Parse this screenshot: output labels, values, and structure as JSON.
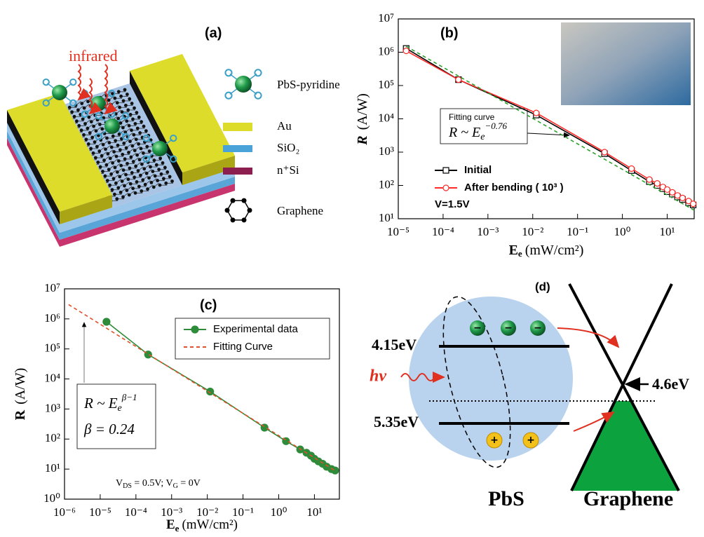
{
  "panel_a": {
    "label": "(a)",
    "infrared": "infrared",
    "legend": [
      "PbS-pyridine",
      "Au",
      "SiO₂",
      "n⁺Si",
      "Graphene"
    ]
  },
  "chart_data": [
    {
      "type": "line",
      "panel_label": "(b)",
      "y_label": {
        "symbol": "R",
        "unit": "(A/W)"
      },
      "x_label": {
        "symbol": "E",
        "subscript": "e",
        "unit": "(mW/cm²)"
      },
      "log_x": true,
      "log_y": true,
      "xlim": [
        1e-05,
        40
      ],
      "ylim": [
        10,
        10000000.0
      ],
      "xticks": [
        {
          "value": 1e-05,
          "label": "10⁻⁵"
        },
        {
          "value": 0.0001,
          "label": "10⁻⁴"
        },
        {
          "value": 0.001,
          "label": "10⁻³"
        },
        {
          "value": 0.01,
          "label": "10⁻²"
        },
        {
          "value": 0.1,
          "label": "10⁻¹"
        },
        {
          "value": 1,
          "label": "10⁰"
        },
        {
          "value": 10,
          "label": "10¹"
        }
      ],
      "yticks": [
        {
          "value": 10,
          "label": "10¹"
        },
        {
          "value": 100,
          "label": "10²"
        },
        {
          "value": 1000,
          "label": "10³"
        },
        {
          "value": 10000,
          "label": "10⁴"
        },
        {
          "value": 100000,
          "label": "10⁵"
        },
        {
          "value": 1000000,
          "label": "10⁶"
        },
        {
          "value": 10000000,
          "label": "10⁷"
        }
      ],
      "legend": "lower left",
      "legend_frame": false,
      "series": [
        {
          "name": "Initial",
          "color": "#000000",
          "marker": "square",
          "filled": false,
          "x": [
            1.5e-05,
            0.00022,
            0.012,
            0.4,
            1.6,
            4,
            6,
            8,
            10,
            13,
            17,
            22,
            30,
            38
          ],
          "values": [
            1300000,
            150000,
            13000,
            900,
            280,
            130,
            100,
            80,
            65,
            55,
            45,
            38,
            30,
            26
          ]
        },
        {
          "name": "After bending ( 10³ )",
          "color": "#ff2a2a",
          "marker": "circle",
          "filled": false,
          "x": [
            1.5e-05,
            0.00022,
            0.012,
            0.4,
            1.6,
            4,
            6,
            8,
            10,
            13,
            17,
            22,
            30,
            38
          ],
          "values": [
            1100000,
            150000,
            15000,
            1000,
            320,
            150,
            115,
            90,
            75,
            62,
            50,
            42,
            34,
            28
          ]
        },
        {
          "color": "#2ca02c",
          "dash": true,
          "x": [
            1.5e-05,
            40
          ],
          "values": [
            1500000,
            18
          ]
        }
      ],
      "annotations": {
        "fit_title": "Fitting curve",
        "formula": {
          "base": "R ~ E",
          "subscript": "e",
          "exponent": "−0.76"
        },
        "voltage": "V=1.5V"
      }
    },
    {
      "type": "line",
      "panel_label": "(c)",
      "y_label": {
        "symbol": "R",
        "unit": "(A/W)"
      },
      "x_label": {
        "symbol": "E",
        "subscript": "e",
        "unit": "(mW/cm²)"
      },
      "log_x": true,
      "log_y": true,
      "xlim": [
        1e-06,
        50
      ],
      "ylim": [
        1,
        10000000.0
      ],
      "xticks": [
        {
          "value": 1e-06,
          "label": "10⁻⁶"
        },
        {
          "value": 1e-05,
          "label": "10⁻⁵"
        },
        {
          "value": 0.0001,
          "label": "10⁻⁴"
        },
        {
          "value": 0.001,
          "label": "10⁻³"
        },
        {
          "value": 0.01,
          "label": "10⁻²"
        },
        {
          "value": 0.1,
          "label": "10⁻¹"
        },
        {
          "value": 1,
          "label": "10⁰"
        },
        {
          "value": 10,
          "label": "10¹"
        }
      ],
      "yticks": [
        {
          "value": 1,
          "label": "10⁰"
        },
        {
          "value": 10,
          "label": "10¹"
        },
        {
          "value": 100,
          "label": "10²"
        },
        {
          "value": 1000,
          "label": "10³"
        },
        {
          "value": 10000,
          "label": "10⁴"
        },
        {
          "value": 100000,
          "label": "10⁵"
        },
        {
          "value": 1000000,
          "label": "10⁶"
        },
        {
          "value": 10000000,
          "label": "10⁷"
        }
      ],
      "legend": "upper right",
      "legend_frame": true,
      "series": [
        {
          "name": "Experimental data",
          "color": "#2e8b3a",
          "marker": "circle",
          "filled": true,
          "x": [
            1.5e-05,
            0.00022,
            0.012,
            0.4,
            1.6,
            4,
            6,
            8,
            10,
            13,
            17,
            22,
            30,
            38
          ],
          "values": [
            800000,
            65000,
            3800,
            240,
            85,
            45,
            35,
            28,
            22,
            18,
            15,
            12,
            10,
            9
          ]
        },
        {
          "name": "Fitting Curve",
          "color": "#e0502a",
          "dash": true,
          "x": [
            1.3e-06,
            40
          ],
          "values": [
            3000000,
            8.5
          ]
        }
      ],
      "annotations": {
        "formula": {
          "base": "R ~ E",
          "subscript": "e",
          "exponent": "β−1"
        },
        "beta": "β = 0.24",
        "conditions": [
          "V",
          "DS",
          " = 0.5V;  V",
          "G",
          " = 0V"
        ]
      }
    }
  ],
  "panel_d": {
    "label": "(d)",
    "levels": [
      "4.15eV",
      "5.35eV"
    ],
    "photon": "hv",
    "dirac": "4.6eV",
    "materials": [
      "PbS",
      "Graphene"
    ]
  }
}
